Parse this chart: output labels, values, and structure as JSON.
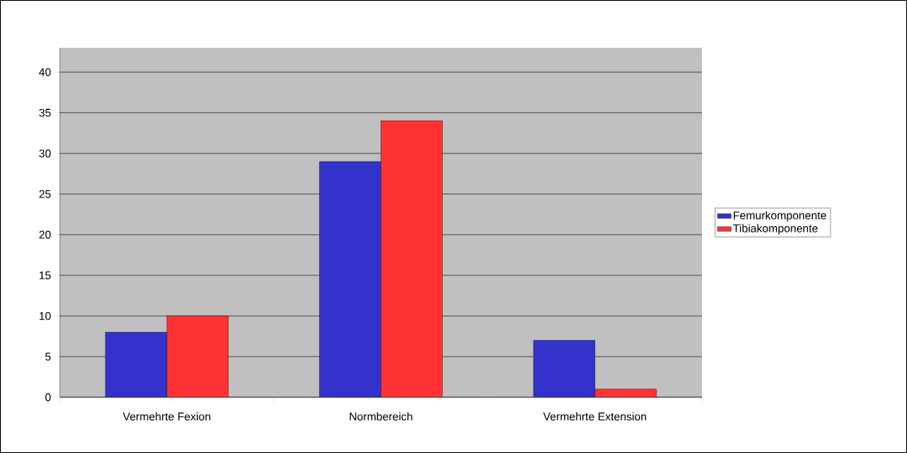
{
  "chart_data": {
    "type": "bar",
    "categories": [
      "Vermehrte Fexion",
      "Normbereich",
      "Vermehrte Extension"
    ],
    "series": [
      {
        "name": "Femurkomponente",
        "color": "#3333cc",
        "values": [
          8,
          29,
          7
        ]
      },
      {
        "name": "Tibiakomponente",
        "color": "#ff3333",
        "values": [
          10,
          34,
          1
        ]
      }
    ],
    "ylim": [
      0,
      43
    ],
    "yticks": [
      0,
      5,
      10,
      15,
      20,
      25,
      30,
      35,
      40
    ],
    "grid": "y",
    "legend": "right"
  }
}
